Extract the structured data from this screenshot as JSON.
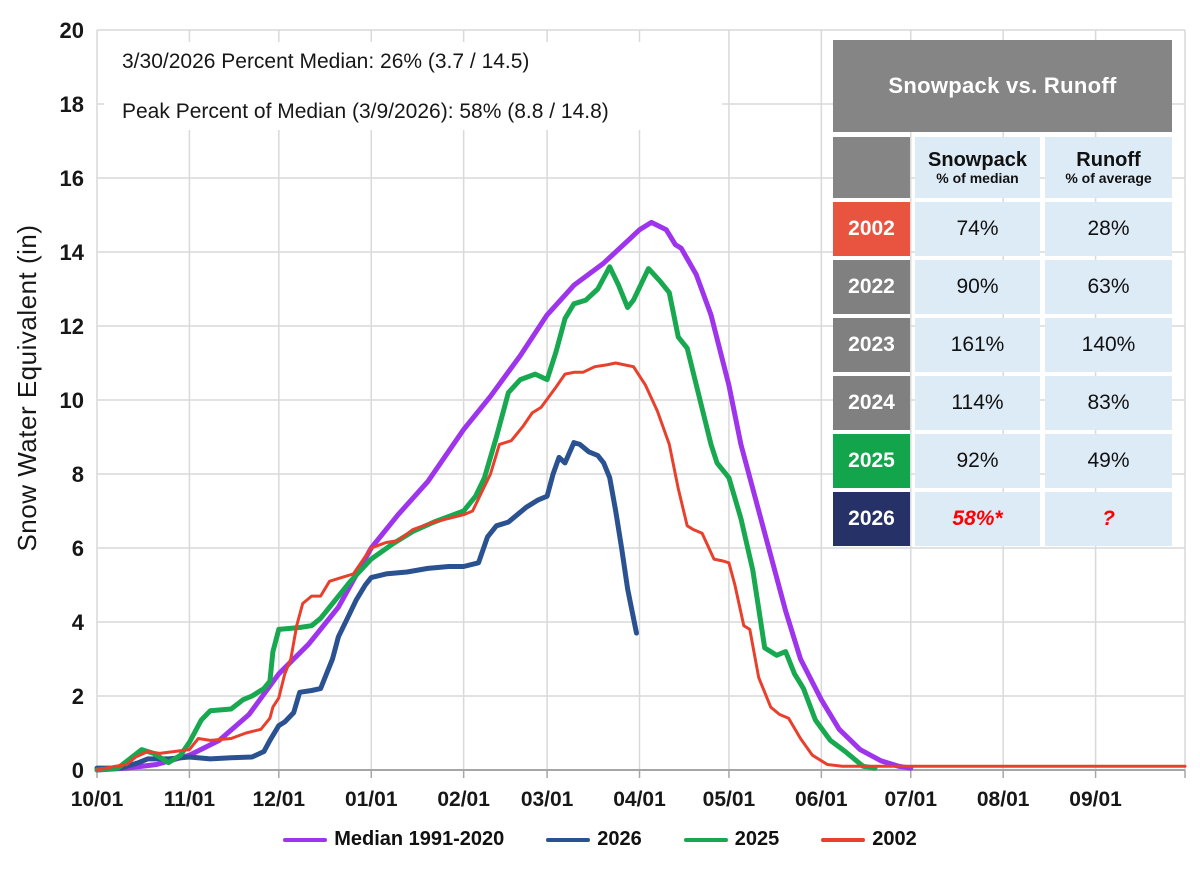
{
  "annotations": {
    "line1": "3/30/2026 Percent Median: 26% (3.7 / 14.5)",
    "line2": "Peak Percent of Median (3/9/2026): 58% (8.8 / 14.8)"
  },
  "table": {
    "title": "Snowpack vs. Runoff",
    "title_bg": "#858585",
    "cell_bg": "#DDEBF7",
    "highlight_color": "#FF0000",
    "header": {
      "snowpack": {
        "label": "Snowpack",
        "sublabel": "% of median"
      },
      "runoff": {
        "label": "Runoff",
        "sublabel": "% of average"
      }
    },
    "rows": [
      {
        "year": "2002",
        "color": "#E8543F",
        "snowpack": "74%",
        "runoff": "28%",
        "highlight": false
      },
      {
        "year": "2022",
        "color": "#808080",
        "snowpack": "90%",
        "runoff": "63%",
        "highlight": false
      },
      {
        "year": "2023",
        "color": "#808080",
        "snowpack": "161%",
        "runoff": "140%",
        "highlight": false
      },
      {
        "year": "2024",
        "color": "#808080",
        "snowpack": "114%",
        "runoff": "83%",
        "highlight": false
      },
      {
        "year": "2025",
        "color": "#12A54B",
        "snowpack": "92%",
        "runoff": "49%",
        "highlight": false
      },
      {
        "year": "2026",
        "color": "#263168",
        "snowpack": "58%*",
        "runoff": "?",
        "highlight": true
      }
    ]
  },
  "chart_data": {
    "type": "line",
    "title": "",
    "xlabel": "",
    "ylabel": "Snow Water Equivalent (in)",
    "ylim": [
      0,
      20
    ],
    "y_ticks": [
      0,
      2,
      4,
      6,
      8,
      10,
      12,
      14,
      16,
      18,
      20
    ],
    "x_range_days": [
      0,
      365
    ],
    "x_ticks": [
      {
        "day": 0,
        "label": "10/01"
      },
      {
        "day": 31,
        "label": "11/01"
      },
      {
        "day": 61,
        "label": "12/01"
      },
      {
        "day": 92,
        "label": "01/01"
      },
      {
        "day": 123,
        "label": "02/01"
      },
      {
        "day": 151,
        "label": "03/01"
      },
      {
        "day": 182,
        "label": "04/01"
      },
      {
        "day": 212,
        "label": "05/01"
      },
      {
        "day": 243,
        "label": "06/01"
      },
      {
        "day": 273,
        "label": "07/01"
      },
      {
        "day": 304,
        "label": "08/01"
      },
      {
        "day": 335,
        "label": "09/01"
      }
    ],
    "grid_color": "#D9D9D9",
    "axis_color": "#A6A6A6",
    "legend_position": "bottom",
    "series": [
      {
        "name": "Median 1991-2020",
        "color": "#9E34EC",
        "width": 5,
        "points": [
          [
            0,
            0
          ],
          [
            10,
            0.05
          ],
          [
            20,
            0.15
          ],
          [
            31,
            0.4
          ],
          [
            41,
            0.8
          ],
          [
            51,
            1.5
          ],
          [
            61,
            2.6
          ],
          [
            71,
            3.4
          ],
          [
            81,
            4.4
          ],
          [
            92,
            6.0
          ],
          [
            101,
            6.9
          ],
          [
            111,
            7.8
          ],
          [
            123,
            9.2
          ],
          [
            132,
            10.1
          ],
          [
            142,
            11.2
          ],
          [
            151,
            12.3
          ],
          [
            160,
            13.1
          ],
          [
            170,
            13.7
          ],
          [
            178,
            14.3
          ],
          [
            182,
            14.6
          ],
          [
            186,
            14.8
          ],
          [
            191,
            14.6
          ],
          [
            194,
            14.2
          ],
          [
            196,
            14.1
          ],
          [
            201,
            13.4
          ],
          [
            206,
            12.3
          ],
          [
            212,
            10.4
          ],
          [
            216,
            8.8
          ],
          [
            221,
            7.3
          ],
          [
            226,
            5.8
          ],
          [
            231,
            4.3
          ],
          [
            236,
            3.0
          ],
          [
            243,
            1.9
          ],
          [
            249,
            1.1
          ],
          [
            256,
            0.55
          ],
          [
            263,
            0.25
          ],
          [
            269,
            0.1
          ],
          [
            273,
            0.05
          ]
        ]
      },
      {
        "name": "2026",
        "color": "#2A5290",
        "width": 5,
        "points": [
          [
            0,
            0.05
          ],
          [
            8,
            0.05
          ],
          [
            14,
            0.2
          ],
          [
            17,
            0.3
          ],
          [
            24,
            0.3
          ],
          [
            31,
            0.35
          ],
          [
            38,
            0.3
          ],
          [
            45,
            0.33
          ],
          [
            52,
            0.35
          ],
          [
            56,
            0.5
          ],
          [
            58,
            0.8
          ],
          [
            61,
            1.2
          ],
          [
            63,
            1.3
          ],
          [
            66,
            1.55
          ],
          [
            68,
            2.1
          ],
          [
            72,
            2.15
          ],
          [
            75,
            2.2
          ],
          [
            77,
            2.6
          ],
          [
            79,
            3.0
          ],
          [
            81,
            3.6
          ],
          [
            84,
            4.1
          ],
          [
            87,
            4.6
          ],
          [
            90,
            5.0
          ],
          [
            92,
            5.2
          ],
          [
            97,
            5.3
          ],
          [
            104,
            5.35
          ],
          [
            111,
            5.45
          ],
          [
            118,
            5.5
          ],
          [
            123,
            5.5
          ],
          [
            128,
            5.6
          ],
          [
            131,
            6.3
          ],
          [
            134,
            6.6
          ],
          [
            138,
            6.7
          ],
          [
            141,
            6.9
          ],
          [
            144,
            7.1
          ],
          [
            148,
            7.3
          ],
          [
            151,
            7.4
          ],
          [
            153,
            8.0
          ],
          [
            155,
            8.45
          ],
          [
            157,
            8.3
          ],
          [
            160,
            8.85
          ],
          [
            162,
            8.8
          ],
          [
            165,
            8.6
          ],
          [
            168,
            8.5
          ],
          [
            170,
            8.3
          ],
          [
            172,
            7.9
          ],
          [
            174,
            7.0
          ],
          [
            176,
            6.0
          ],
          [
            178,
            4.9
          ],
          [
            180,
            4.1
          ],
          [
            181,
            3.7
          ]
        ]
      },
      {
        "name": "2025",
        "color": "#18A84F",
        "width": 5,
        "points": [
          [
            0,
            0
          ],
          [
            7,
            0.05
          ],
          [
            11,
            0.3
          ],
          [
            15,
            0.55
          ],
          [
            19,
            0.45
          ],
          [
            24,
            0.2
          ],
          [
            28,
            0.4
          ],
          [
            31,
            0.75
          ],
          [
            35,
            1.35
          ],
          [
            38,
            1.6
          ],
          [
            45,
            1.65
          ],
          [
            49,
            1.9
          ],
          [
            52,
            2.0
          ],
          [
            56,
            2.2
          ],
          [
            58,
            2.4
          ],
          [
            59,
            3.2
          ],
          [
            61,
            3.8
          ],
          [
            68,
            3.85
          ],
          [
            72,
            3.9
          ],
          [
            75,
            4.1
          ],
          [
            80,
            4.6
          ],
          [
            85,
            5.1
          ],
          [
            92,
            5.7
          ],
          [
            99,
            6.1
          ],
          [
            106,
            6.45
          ],
          [
            113,
            6.7
          ],
          [
            123,
            7.0
          ],
          [
            127,
            7.4
          ],
          [
            130,
            7.9
          ],
          [
            134,
            9.0
          ],
          [
            138,
            10.2
          ],
          [
            142,
            10.55
          ],
          [
            147,
            10.7
          ],
          [
            151,
            10.55
          ],
          [
            154,
            11.3
          ],
          [
            157,
            12.2
          ],
          [
            160,
            12.6
          ],
          [
            164,
            12.7
          ],
          [
            168,
            13.0
          ],
          [
            172,
            13.6
          ],
          [
            175,
            13.1
          ],
          [
            178,
            12.5
          ],
          [
            180,
            12.7
          ],
          [
            185,
            13.55
          ],
          [
            189,
            13.2
          ],
          [
            192,
            12.9
          ],
          [
            195,
            11.7
          ],
          [
            198,
            11.4
          ],
          [
            202,
            10.1
          ],
          [
            206,
            8.8
          ],
          [
            208,
            8.3
          ],
          [
            212,
            7.9
          ],
          [
            216,
            6.8
          ],
          [
            220,
            5.4
          ],
          [
            224,
            3.3
          ],
          [
            228,
            3.1
          ],
          [
            231,
            3.2
          ],
          [
            234,
            2.6
          ],
          [
            237,
            2.2
          ],
          [
            241,
            1.35
          ],
          [
            246,
            0.8
          ],
          [
            251,
            0.5
          ],
          [
            257,
            0.1
          ],
          [
            261,
            0.05
          ]
        ]
      },
      {
        "name": "2002",
        "color": "#E8402C",
        "width": 3,
        "points": [
          [
            0,
            0
          ],
          [
            6,
            0.1
          ],
          [
            10,
            0.15
          ],
          [
            13,
            0.35
          ],
          [
            17,
            0.5
          ],
          [
            21,
            0.45
          ],
          [
            26,
            0.5
          ],
          [
            31,
            0.55
          ],
          [
            34,
            0.85
          ],
          [
            38,
            0.8
          ],
          [
            45,
            0.85
          ],
          [
            50,
            1.0
          ],
          [
            55,
            1.1
          ],
          [
            58,
            1.4
          ],
          [
            59,
            1.7
          ],
          [
            61,
            1.95
          ],
          [
            63,
            2.6
          ],
          [
            65,
            3.0
          ],
          [
            67,
            3.9
          ],
          [
            69,
            4.5
          ],
          [
            72,
            4.7
          ],
          [
            75,
            4.7
          ],
          [
            78,
            5.1
          ],
          [
            82,
            5.2
          ],
          [
            86,
            5.3
          ],
          [
            92,
            6.0
          ],
          [
            97,
            6.15
          ],
          [
            101,
            6.2
          ],
          [
            106,
            6.5
          ],
          [
            113,
            6.7
          ],
          [
            118,
            6.8
          ],
          [
            123,
            6.9
          ],
          [
            126,
            7.0
          ],
          [
            129,
            7.5
          ],
          [
            132,
            8.0
          ],
          [
            135,
            8.8
          ],
          [
            139,
            8.9
          ],
          [
            143,
            9.3
          ],
          [
            146,
            9.65
          ],
          [
            149,
            9.8
          ],
          [
            154,
            10.35
          ],
          [
            157,
            10.7
          ],
          [
            160,
            10.75
          ],
          [
            163,
            10.75
          ],
          [
            167,
            10.9
          ],
          [
            171,
            10.95
          ],
          [
            174,
            11.0
          ],
          [
            177,
            10.95
          ],
          [
            180,
            10.9
          ],
          [
            184,
            10.4
          ],
          [
            188,
            9.7
          ],
          [
            192,
            8.8
          ],
          [
            195,
            7.6
          ],
          [
            198,
            6.6
          ],
          [
            200,
            6.5
          ],
          [
            203,
            6.4
          ],
          [
            207,
            5.7
          ],
          [
            210,
            5.65
          ],
          [
            212,
            5.6
          ],
          [
            214,
            5.0
          ],
          [
            217,
            3.9
          ],
          [
            219,
            3.8
          ],
          [
            222,
            2.5
          ],
          [
            226,
            1.7
          ],
          [
            229,
            1.5
          ],
          [
            232,
            1.4
          ],
          [
            236,
            0.85
          ],
          [
            240,
            0.4
          ],
          [
            245,
            0.15
          ],
          [
            250,
            0.1
          ],
          [
            365,
            0.1
          ]
        ]
      }
    ]
  }
}
